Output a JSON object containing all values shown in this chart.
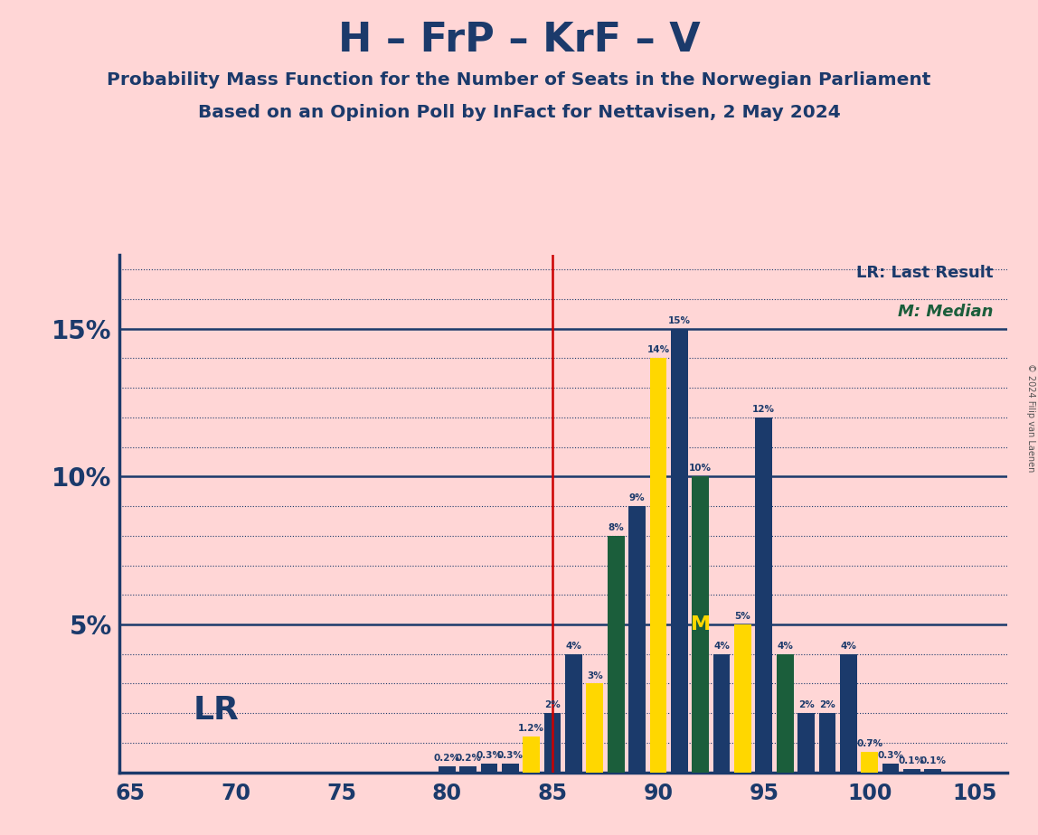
{
  "title": "H – FrP – KrF – V",
  "subtitle1": "Probability Mass Function for the Number of Seats in the Norwegian Parliament",
  "subtitle2": "Based on an Opinion Poll by InFact for Nettavisen, 2 May 2024",
  "copyright": "© 2024 Filip van Laenen",
  "legend_lr": "LR: Last Result",
  "legend_m": "M: Median",
  "lr_label": "LR",
  "lr_line": 85,
  "background_color": "#FFD6D6",
  "bar_color_normal": "#1B3A6B",
  "bar_color_lr": "#FFD700",
  "bar_color_median": "#1B5E3B",
  "axis_color": "#1B3A6B",
  "seats": [
    65,
    66,
    67,
    68,
    69,
    70,
    71,
    72,
    73,
    74,
    75,
    76,
    77,
    78,
    79,
    80,
    81,
    82,
    83,
    84,
    85,
    86,
    87,
    88,
    89,
    90,
    91,
    92,
    93,
    94,
    95,
    96,
    97,
    98,
    99,
    100,
    101,
    102,
    103,
    104,
    105
  ],
  "probs": [
    0.0,
    0.0,
    0.0,
    0.0,
    0.0,
    0.0,
    0.0,
    0.0,
    0.0,
    0.0,
    0.0,
    0.0,
    0.0,
    0.0,
    0.0,
    0.002,
    0.002,
    0.003,
    0.003,
    0.012,
    0.02,
    0.04,
    0.03,
    0.08,
    0.09,
    0.14,
    0.15,
    0.1,
    0.04,
    0.05,
    0.12,
    0.04,
    0.02,
    0.02,
    0.04,
    0.007,
    0.003,
    0.001,
    0.001,
    0.0,
    0.0
  ],
  "labels": [
    "0%",
    "0%",
    "0%",
    "0%",
    "0%",
    "0%",
    "0%",
    "0%",
    "0%",
    "0%",
    "0%",
    "0%",
    "0%",
    "0%",
    "0%",
    "0.2%",
    "0.2%",
    "0.3%",
    "0.3%",
    "1.2%",
    "2%",
    "4%",
    "3%",
    "8%",
    "9%",
    "14%",
    "15%",
    "10%",
    "4%",
    "5%",
    "12%",
    "4%",
    "2%",
    "2%",
    "4%",
    "0.7%",
    "0.3%",
    "0.1%",
    "0.1%",
    "0%",
    "0%"
  ],
  "lr_seats": [
    84,
    87,
    90,
    94,
    100
  ],
  "median_seats": [
    88,
    92,
    96
  ]
}
